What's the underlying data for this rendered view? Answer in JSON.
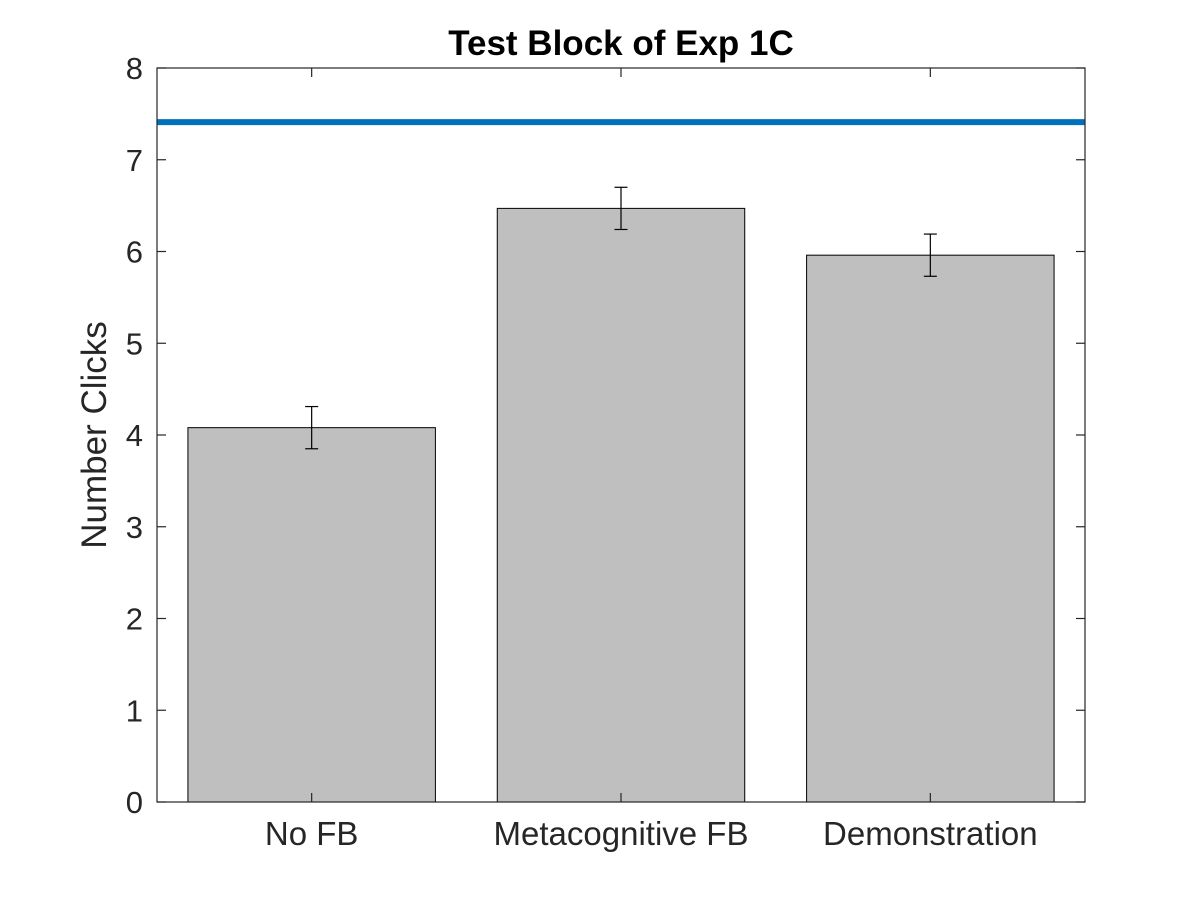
{
  "chart_data": {
    "type": "bar",
    "title": "Test Block of Exp 1C",
    "xlabel": "",
    "ylabel": "Number Clicks",
    "categories": [
      "No FB",
      "Metacognitive FB",
      "Demonstration"
    ],
    "values": [
      4.08,
      6.47,
      5.96
    ],
    "error_low": [
      3.85,
      6.24,
      5.73
    ],
    "error_high": [
      4.31,
      6.7,
      6.19
    ],
    "reference_line": 7.41,
    "ylim": [
      0,
      8
    ],
    "yticks": [
      "0",
      "1",
      "2",
      "3",
      "4",
      "5",
      "6",
      "7",
      "8"
    ],
    "grid": false,
    "legend": "none",
    "colors": {
      "bar_fill": "#bfbfbf",
      "bar_edge": "#000000",
      "reference_line": "#0072bd",
      "axes": "#262626",
      "error_bar": "#000000"
    }
  }
}
